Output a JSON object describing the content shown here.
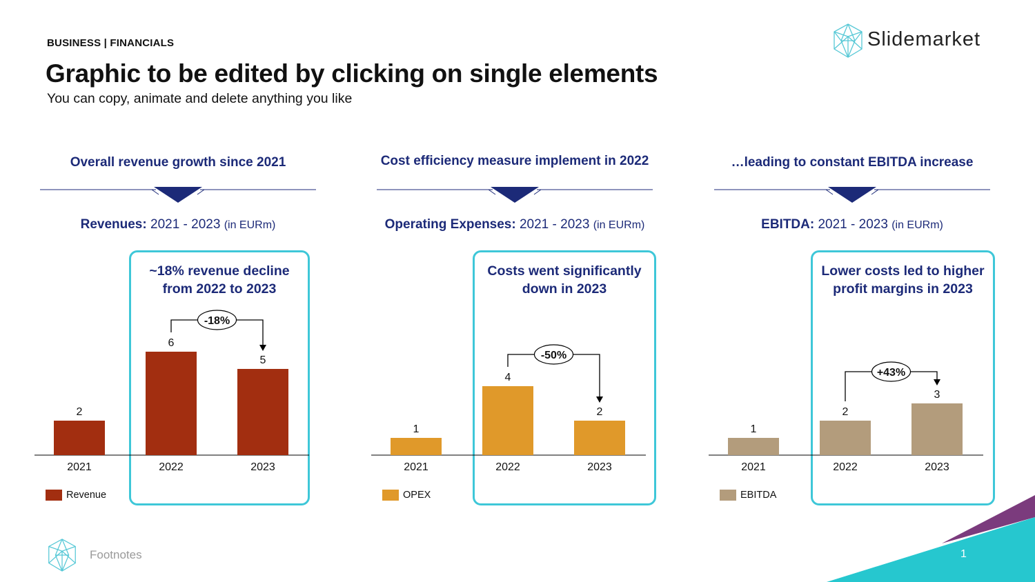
{
  "header": {
    "kicker": "BUSINESS | FINANCIALS",
    "title": "Graphic to be edited by clicking on single elements",
    "subtitle": "You can copy, animate and delete anything you like"
  },
  "brand": {
    "name": "Slidemarket",
    "logo_icon": "geodesic-sphere-icon"
  },
  "colors": {
    "navy": "#1c2a78",
    "cyan": "#3ec7d8",
    "revenue": "#a22e10",
    "opex": "#e0992a",
    "ebitda": "#b39c7c"
  },
  "panels": [
    {
      "headline": "Overall revenue growth since 2021",
      "chart_title_bold": "Revenues:",
      "chart_title_rest": " 2021 - 2023 ",
      "chart_title_unit": "(in EURm)",
      "highlight_text_1": "~18% revenue decline",
      "highlight_text_2": "from 2022 to 2023",
      "legend": "Revenue"
    },
    {
      "headline": "Cost efficiency measure implement in 2022",
      "chart_title_bold": "Operating Expenses:",
      "chart_title_rest": " 2021 - 2023 ",
      "chart_title_unit": "(in EURm)",
      "highlight_text_1": "Costs went significantly",
      "highlight_text_2": "down in 2023",
      "legend": "OPEX"
    },
    {
      "headline": "…leading to constant EBITDA increase",
      "chart_title_bold": "EBITDA:",
      "chart_title_rest": " 2021 - 2023 ",
      "chart_title_unit": "(in EURm)",
      "highlight_text_1": "Lower costs led to higher",
      "highlight_text_2": "profit margins in 2023",
      "legend": "EBITDA"
    }
  ],
  "chart_data": [
    {
      "type": "bar",
      "categories": [
        "2021",
        "2022",
        "2023"
      ],
      "values": [
        2,
        6,
        5
      ],
      "value_labels": [
        "2",
        "6",
        "5"
      ],
      "series": [
        {
          "name": "Revenue",
          "values": [
            2,
            6,
            5
          ]
        }
      ],
      "ylim": [
        0,
        6
      ],
      "change_label": "-18%",
      "color": "#a22e10"
    },
    {
      "type": "bar",
      "categories": [
        "2021",
        "2022",
        "2023"
      ],
      "values": [
        1,
        4,
        2
      ],
      "value_labels": [
        "1",
        "4",
        "2"
      ],
      "series": [
        {
          "name": "OPEX",
          "values": [
            1,
            4,
            2
          ]
        }
      ],
      "ylim": [
        0,
        6
      ],
      "change_label": "-50%",
      "color": "#e0992a"
    },
    {
      "type": "bar",
      "categories": [
        "2021",
        "2022",
        "2023"
      ],
      "values": [
        1,
        2,
        3
      ],
      "value_labels": [
        "1",
        "2",
        "3"
      ],
      "series": [
        {
          "name": "EBITDA",
          "values": [
            1,
            2,
            3
          ]
        }
      ],
      "ylim": [
        0,
        6
      ],
      "change_label": "+43%",
      "color": "#b39c7c"
    }
  ],
  "footer": {
    "footnote": "Footnotes",
    "page_number": "1"
  }
}
